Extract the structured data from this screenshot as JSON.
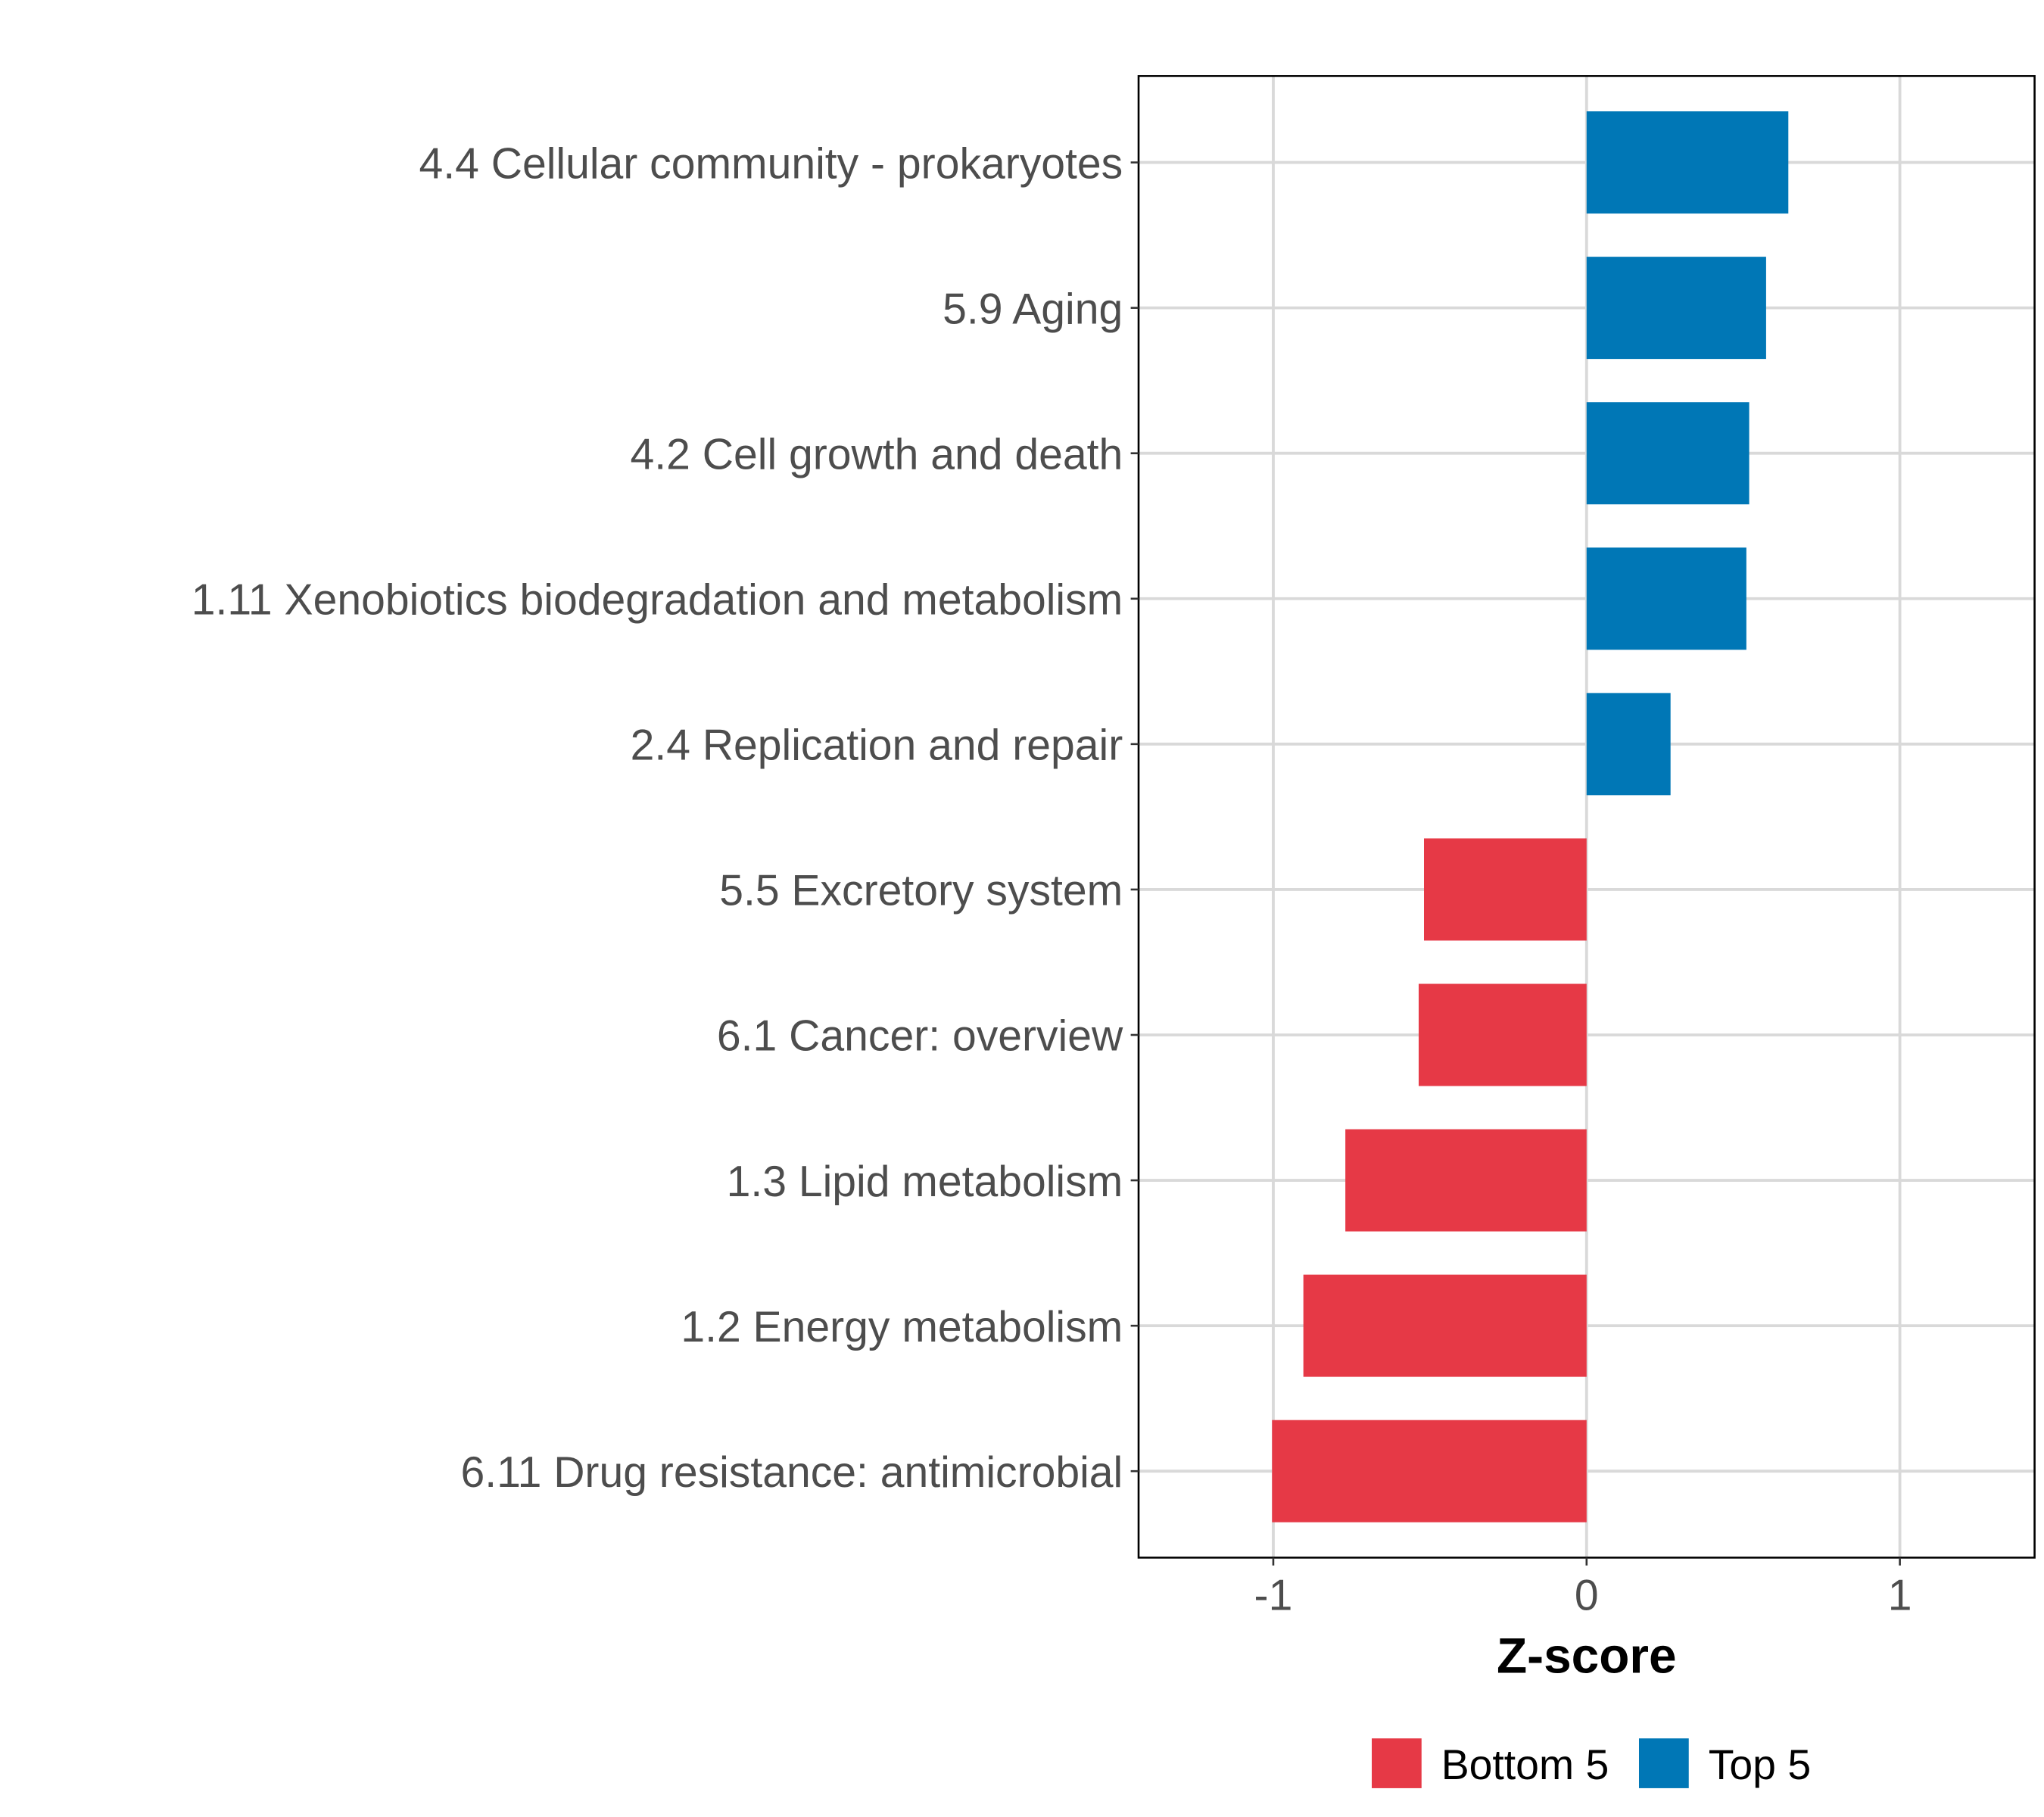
{
  "chart_data": {
    "type": "bar",
    "orientation": "horizontal",
    "title": "",
    "xlabel": "Z-score",
    "ylabel": "",
    "xlim": [
      -1.43,
      1.43
    ],
    "xticks": [
      -1,
      0,
      1
    ],
    "xtick_labels": [
      "-1",
      "0",
      "1"
    ],
    "grid": true,
    "categories": [
      "4.4 Cellular community - prokaryotes",
      "5.9 Aging",
      "4.2 Cell growth and death",
      "1.11 Xenobiotics biodegradation and metabolism",
      "2.4 Replication and repair",
      "5.5 Excretory system",
      "6.1 Cancer: overview",
      "1.3 Lipid metabolism",
      "1.2 Energy metabolism",
      "6.11 Drug resistance: antimicrobial"
    ],
    "values": [
      0.644,
      0.573,
      0.519,
      0.51,
      0.268,
      -0.519,
      -0.536,
      -0.77,
      -0.904,
      -1.004
    ],
    "groups": [
      "Top 5",
      "Top 5",
      "Top 5",
      "Top 5",
      "Top 5",
      "Bottom 5",
      "Bottom 5",
      "Bottom 5",
      "Bottom 5",
      "Bottom 5"
    ],
    "legend": {
      "placement": "bottom",
      "entries": [
        {
          "name": "Bottom 5",
          "color": "#E63946"
        },
        {
          "name": "Top 5",
          "color": "#0077B6"
        }
      ]
    }
  }
}
